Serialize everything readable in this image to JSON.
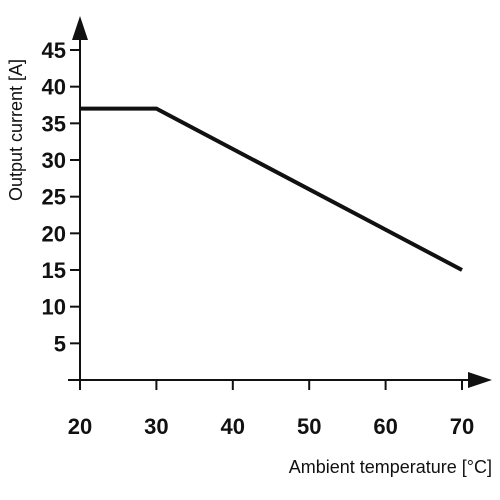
{
  "chart_data": {
    "type": "line",
    "title": "",
    "xlabel": "Ambient temperature [°C]",
    "ylabel": "Output current [A]",
    "xlim": [
      20,
      70
    ],
    "ylim": [
      0,
      45
    ],
    "x_ticks": [
      20,
      30,
      40,
      50,
      60,
      70
    ],
    "y_ticks": [
      5,
      10,
      15,
      20,
      25,
      30,
      35,
      40,
      45
    ],
    "grid": false,
    "series": [
      {
        "x": [
          20,
          30,
          70
        ],
        "y": [
          37,
          37,
          15
        ]
      }
    ],
    "colors": {
      "axis": "#111111",
      "line": "#111111"
    }
  }
}
